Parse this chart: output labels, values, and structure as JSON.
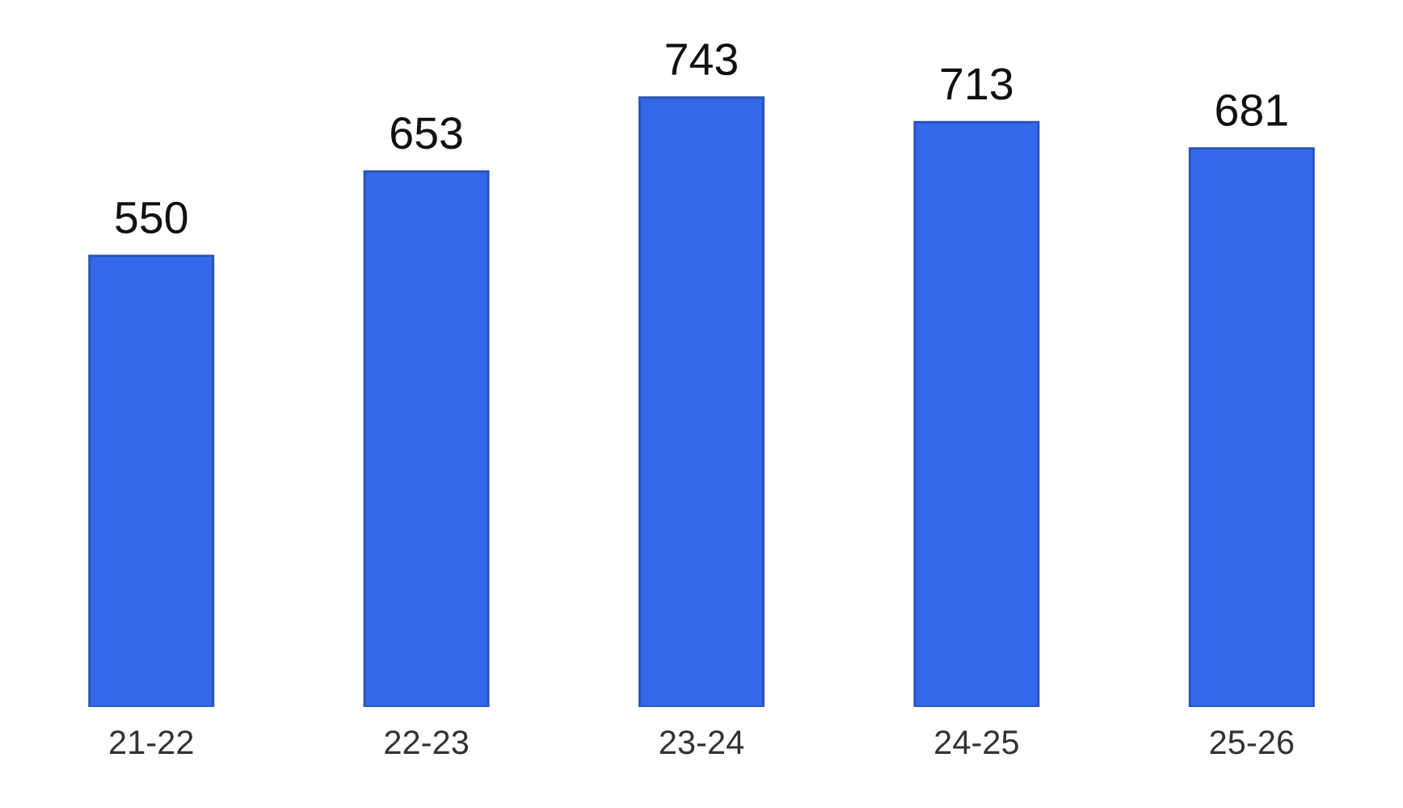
{
  "chart_data": {
    "type": "bar",
    "categories": [
      "21-22",
      "22-23",
      "23-24",
      "24-25",
      "25-26"
    ],
    "values": [
      550,
      653,
      743,
      713,
      681
    ],
    "color": "#3568e8",
    "data_labels": true,
    "grid": false,
    "legend": false
  }
}
